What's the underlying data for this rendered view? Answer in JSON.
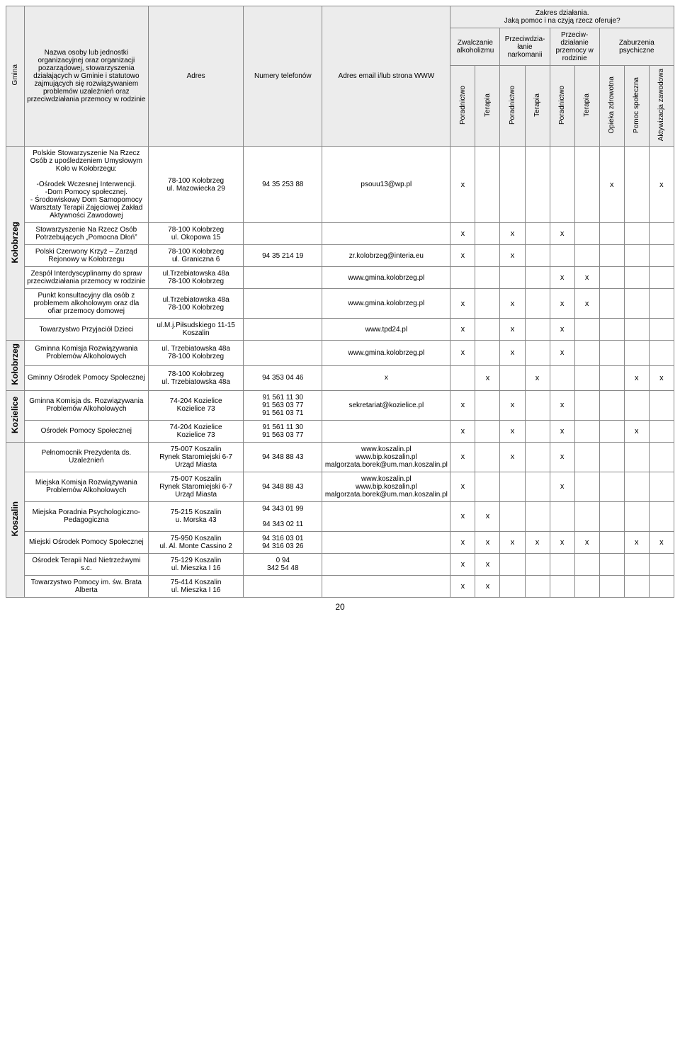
{
  "header": {
    "gmina": "Gmina",
    "nazwa": "Nazwa osoby lub jednostki organizacyjnej oraz organizacji pozarządowej, stowarzyszenia działających w Gminie i statutowo zajmujących się rozwiązywaniem problemów uzależnień oraz przeciwdziałania przemocy w rodzinie",
    "adres": "Adres",
    "telefony": "Numery telefonów",
    "email": "Adres email i/lub strona WWW",
    "zakres_title": "Zakres działania.",
    "zakres_sub": "Jaką pomoc i na czyją rzecz oferuje?",
    "groups": {
      "alkohol": "Zwalczanie alkoholizmu",
      "narko": "Przeciwdzia-łanie narkomanii",
      "przemoc": "Przeciw-działanie przemocy w rodzinie",
      "psych": "Zaburzenia psychiczne"
    },
    "sub": {
      "poradnictwo": "Poradnictwo",
      "terapia": "Terapia",
      "opieka": "Opieka zdrowotna",
      "pomoc": "Pomoc społeczna",
      "aktyw": "Aktywizacja zawodowa"
    }
  },
  "gminy": [
    {
      "name": "Kołobrzeg",
      "rows": [
        {
          "nazwa": "Polskie Stowarzyszenie Na Rzecz Osób z upośledzeniem Umysłowym Koło w Kołobrzegu:\n\n-Ośrodek Wczesnej Interwencji.\n-Dom Pomocy społecznej.\n- Środowiskowy Dom Samopomocy Warsztaty Terapii Zajęciowej Zakład Aktywności Zawodowej",
          "adres": "78-100 Kołobrzeg\nul. Mazowiecka 29",
          "tel": "94 35 253 88",
          "email": "psouu13@wp.pl",
          "marks": [
            "x",
            "",
            "",
            "",
            "",
            "",
            "x",
            "",
            "x"
          ]
        },
        {
          "nazwa": "Stowarzyszenie Na Rzecz Osób Potrzebujących „Pomocna Dłoń”",
          "adres": "78-100 Kołobrzeg\nul. Okopowa 15",
          "tel": "",
          "email": "",
          "marks": [
            "x",
            "",
            "x",
            "",
            "x",
            "",
            "",
            "",
            ""
          ]
        },
        {
          "nazwa": "Polski Czerwony Krzyż – Zarząd Rejonowy w Kołobrzegu",
          "adres": "78-100 Kołobrzeg\nul. Graniczna 6",
          "tel": "94 35 214 19",
          "email": "zr.kolobrzeg@interia.eu",
          "marks": [
            "x",
            "",
            "x",
            "",
            "",
            "",
            "",
            "",
            ""
          ]
        },
        {
          "nazwa": "Zespół Interdyscyplinarny do spraw przeciwdziałania przemocy w rodzinie",
          "adres": "ul.Trzebiatowska 48a\n78-100 Kołobrzeg",
          "tel": "",
          "email": "www.gmina.kolobrzeg.pl",
          "marks": [
            "",
            "",
            "",
            "",
            "x",
            "x",
            "",
            "",
            ""
          ]
        },
        {
          "nazwa": "Punkt konsultacyjny dla osób z problemem alkoholowym oraz dla ofiar przemocy domowej",
          "adres": "ul.Trzebiatowska 48a\n78-100 Kołobrzeg",
          "tel": "",
          "email": "www.gmina.kolobrzeg.pl",
          "marks": [
            "x",
            "",
            "x",
            "",
            "x",
            "x",
            "",
            "",
            ""
          ]
        },
        {
          "nazwa": "Towarzystwo Przyjaciół Dzieci",
          "adres": "ul.M.j.Piłsudskiego 11-15\nKoszalin",
          "tel": "",
          "email": "www.tpd24.pl",
          "marks": [
            "x",
            "",
            "x",
            "",
            "x",
            "",
            "",
            "",
            ""
          ]
        }
      ]
    },
    {
      "name": "Kołobrzeg",
      "rows": [
        {
          "nazwa": "Gminna Komisja Rozwiązywania Problemów Alkoholowych",
          "adres": "ul. Trzebiatowska 48a\n78-100 Kołobrzeg",
          "tel": "",
          "email": "www.gmina.kolobrzeg.pl",
          "marks": [
            "x",
            "",
            "x",
            "",
            "x",
            "",
            "",
            "",
            ""
          ]
        },
        {
          "nazwa": "Gminny Ośrodek Pomocy Społecznej",
          "adres": "78-100 Kołobrzeg\nul. Trzebiatowska 48a",
          "tel": "94 353 04 46",
          "email": "x",
          "marks": [
            "",
            "x",
            "",
            "x",
            "",
            "",
            "",
            "x",
            "x"
          ]
        }
      ]
    },
    {
      "name": "Kozielice",
      "rows": [
        {
          "nazwa": "Gminna Komisja ds. Rozwiązywania Problemów Alkoholowych",
          "adres": "74-204 Kozielice\nKozielice 73",
          "tel": "91 561 11 30\n91 563 03 77\n91 561 03 71",
          "email": "sekretariat@kozielice.pl",
          "marks": [
            "x",
            "",
            "x",
            "",
            "x",
            "",
            "",
            "",
            ""
          ]
        },
        {
          "nazwa": "Ośrodek Pomocy Społecznej",
          "adres": "74-204 Kozielice\nKozielice 73",
          "tel": "91 561 11 30\n91 563 03 77",
          "email": "",
          "marks": [
            "x",
            "",
            "x",
            "",
            "x",
            "",
            "",
            "x",
            ""
          ]
        }
      ]
    },
    {
      "name": "Koszalin",
      "rows": [
        {
          "nazwa": "Pełnomocnik Prezydenta ds. Uzależnień",
          "adres": "75-007 Koszalin\nRynek Staromiejski 6-7\nUrząd Miasta",
          "tel": "94 348 88 43",
          "email": "www.koszalin.pl\nwww.bip.koszalin.pl\nmalgorzata.borek@um.man.koszalin.pl",
          "marks": [
            "x",
            "",
            "x",
            "",
            "x",
            "",
            "",
            "",
            ""
          ]
        },
        {
          "nazwa": "Miejska Komisja Rozwiązywania Problemów Alkoholowych",
          "adres": "75-007 Koszalin\nRynek Staromiejski 6-7\nUrząd Miasta",
          "tel": "94 348 88 43",
          "email": "www.koszalin.pl\nwww.bip.koszalin.pl\nmalgorzata.borek@um.man.koszalin.pl",
          "marks": [
            "x",
            "",
            "",
            "",
            "x",
            "",
            "",
            "",
            ""
          ]
        },
        {
          "nazwa": "Miejska Poradnia Psychologiczno-Pedagogiczna",
          "adres": "75-215 Koszalin\nu. Morska 43",
          "tel": "94 343 01 99\n\n94 343 02 11",
          "email": "",
          "marks": [
            "x",
            "x",
            "",
            "",
            "",
            "",
            "",
            "",
            ""
          ]
        },
        {
          "nazwa": "Miejski Ośrodek Pomocy Społecznej",
          "adres": "75-950 Koszalin\nul. Al. Monte Cassino 2",
          "tel": "94 316 03 01\n94 316 03 26",
          "email": "",
          "marks": [
            "x",
            "x",
            "x",
            "x",
            "x",
            "x",
            "",
            "x",
            "x"
          ]
        },
        {
          "nazwa": "Ośrodek Terapii Nad Nietrzeźwymi s.c.",
          "adres": "75-129 Koszalin\nul. Mieszka I 16",
          "tel": "0 94\n342 54 48",
          "email": "",
          "marks": [
            "x",
            "x",
            "",
            "",
            "",
            "",
            "",
            "",
            ""
          ]
        },
        {
          "nazwa": "Towarzystwo Pomocy im. św. Brata Alberta",
          "adres": "75-414 Koszalin\nul. Mieszka I 16",
          "tel": "",
          "email": "",
          "marks": [
            "x",
            "x",
            "",
            "",
            "",
            "",
            "",
            "",
            ""
          ]
        }
      ]
    }
  ],
  "page": "20"
}
